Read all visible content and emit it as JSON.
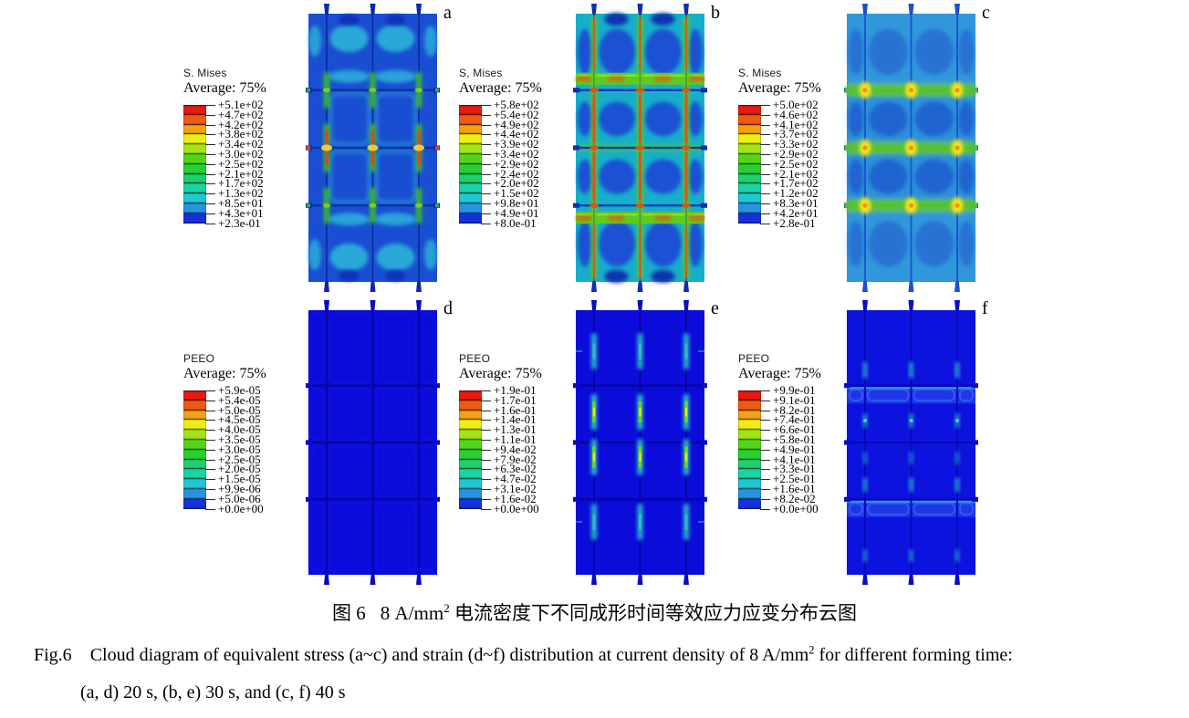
{
  "figure": {
    "caption_zh": {
      "fig_label": "图 6",
      "unit_pre": "8 A/mm",
      "unit_sup": "2",
      "text": " 电流密度下不同成形时间等效应力应变分布云图"
    },
    "caption_en": {
      "fig_label": "Fig.6",
      "line1_pre": "Cloud diagram of equivalent stress (a~c) and strain (d~f) distribution at current density of 8 A/mm",
      "line1_sup": "2",
      "line1_post": " for different forming time:",
      "line2": "(a, d) 20 s, (b, e) 30 s, and (c, f) 40 s"
    }
  },
  "colorbar": [
    "#e8190f",
    "#ee5a11",
    "#f3a013",
    "#edee13",
    "#a2e418",
    "#54d51b",
    "#28cf33",
    "#1dd06e",
    "#1ad2a4",
    "#1ec7d3",
    "#2692e4",
    "#1531dd"
  ],
  "panels": [
    {
      "id": "a",
      "letter": "a",
      "field": "S. Mises",
      "average": "Average: 75%",
      "style": "a",
      "values": [
        "+5.1e+02",
        "+4.7e+02",
        "+4.2e+02",
        "+3.8e+02",
        "+3.4e+02",
        "+3.0e+02",
        "+2.5e+02",
        "+2.1e+02",
        "+1.7e+02",
        "+1.3e+02",
        "+8.5e+01",
        "+4.3e+01",
        "+2.3e-01"
      ],
      "art": {
        "base": "#1a4ed2",
        "rib": "#0c2f9e",
        "tab": "#0a2aa6",
        "cyan": "#2fc0da",
        "dark": "#0e2fb4",
        "green": "#3ec32a",
        "red": "#e8430f",
        "yellow": "#ffd43c"
      }
    },
    {
      "id": "b",
      "letter": "b",
      "field": "S, Mises",
      "average": "Average: 75%",
      "style": "b",
      "values": [
        "+5.8e+02",
        "+5.4e+02",
        "+4.9e+02",
        "+4.4e+02",
        "+3.9e+02",
        "+3.4e+02",
        "+2.9e+02",
        "+2.4e+02",
        "+2.0e+02",
        "+1.5e+02",
        "+9.8e+01",
        "+4.9e+01",
        "+8.0e-01"
      ],
      "art": {
        "base": "#17aecb",
        "rib": "#0e2fae",
        "tab": "#0e2fae",
        "blob": "#1c44d4",
        "navy": "#0a28a8",
        "green": "#62cc19",
        "red": "#e8500f",
        "yellow": "#cbe72a"
      }
    },
    {
      "id": "c",
      "letter": "c",
      "field": "S. Mises",
      "average": "Average: 75%",
      "style": "c",
      "values": [
        "+5.0e+02",
        "+4.6e+02",
        "+4.1e+02",
        "+3.7e+02",
        "+3.3e+02",
        "+2.9e+02",
        "+2.5e+02",
        "+2.1e+02",
        "+1.7e+02",
        "+1.2e+02",
        "+8.3e+01",
        "+4.2e+01",
        "+2.8e-01"
      ],
      "art": {
        "base": "#2b91d9",
        "rib": "#1b51cf",
        "tab": "#1b51cf",
        "blob": "#1b51cf",
        "green": "#54c822",
        "glow": "#9fdd2e",
        "yellow": "#ffe515",
        "orange": "#f0931a",
        "cyan": "#49b5e3"
      }
    },
    {
      "id": "d",
      "letter": "d",
      "field": "PEEO",
      "average": "Average: 75%",
      "style": "d",
      "values": [
        "+5.9e-05",
        "+5.4e-05",
        "+5.0e-05",
        "+4.5e-05",
        "+4.0e-05",
        "+3.5e-05",
        "+3.0e-05",
        "+2.5e-05",
        "+2.0e-05",
        "+1.5e-05",
        "+9.9e-06",
        "+5.0e-06",
        "+0.0e+00"
      ],
      "art": {
        "base": "#0b0cda",
        "rib": "#06069c",
        "tab": "#0a0ac8",
        "hi": "#1418e8"
      }
    },
    {
      "id": "e",
      "letter": "e",
      "field": "PEEO",
      "average": "Average: 75%",
      "style": "e",
      "values": [
        "+1.9e-01",
        "+1.7e-01",
        "+1.6e-01",
        "+1.4e-01",
        "+1.3e-01",
        "+1.1e-01",
        "+9.4e-02",
        "+7.9e-02",
        "+6.3e-02",
        "+4.7e-02",
        "+3.1e-02",
        "+1.6e-02",
        "+0.0e+00"
      ],
      "art": {
        "base": "#0b0cda",
        "rib": "#06069c",
        "tab": "#0a0ac8",
        "cyan": "#2fc9cb",
        "green": "#68d41c",
        "yellow": "#f2ea1a",
        "teal": "#35d8b8"
      }
    },
    {
      "id": "f",
      "letter": "f",
      "field": "PEEO",
      "average": "Average: 75%",
      "style": "f",
      "values": [
        "+9.9e-01",
        "+9.1e-01",
        "+8.2e-01",
        "+7.4e-01",
        "+6.6e-01",
        "+5.8e-01",
        "+4.9e-01",
        "+4.1e-01",
        "+3.3e-01",
        "+2.5e-01",
        "+1.6e-01",
        "+8.2e-02",
        "+0.0e+00"
      ],
      "art": {
        "base": "#0d13de",
        "rib": "#0808b0",
        "tab": "#0a0ac8",
        "band": "#2038ea",
        "bandline": "#2f9fd9",
        "cyan": "#2cc3cf",
        "dot": "#49e0d6"
      }
    }
  ]
}
